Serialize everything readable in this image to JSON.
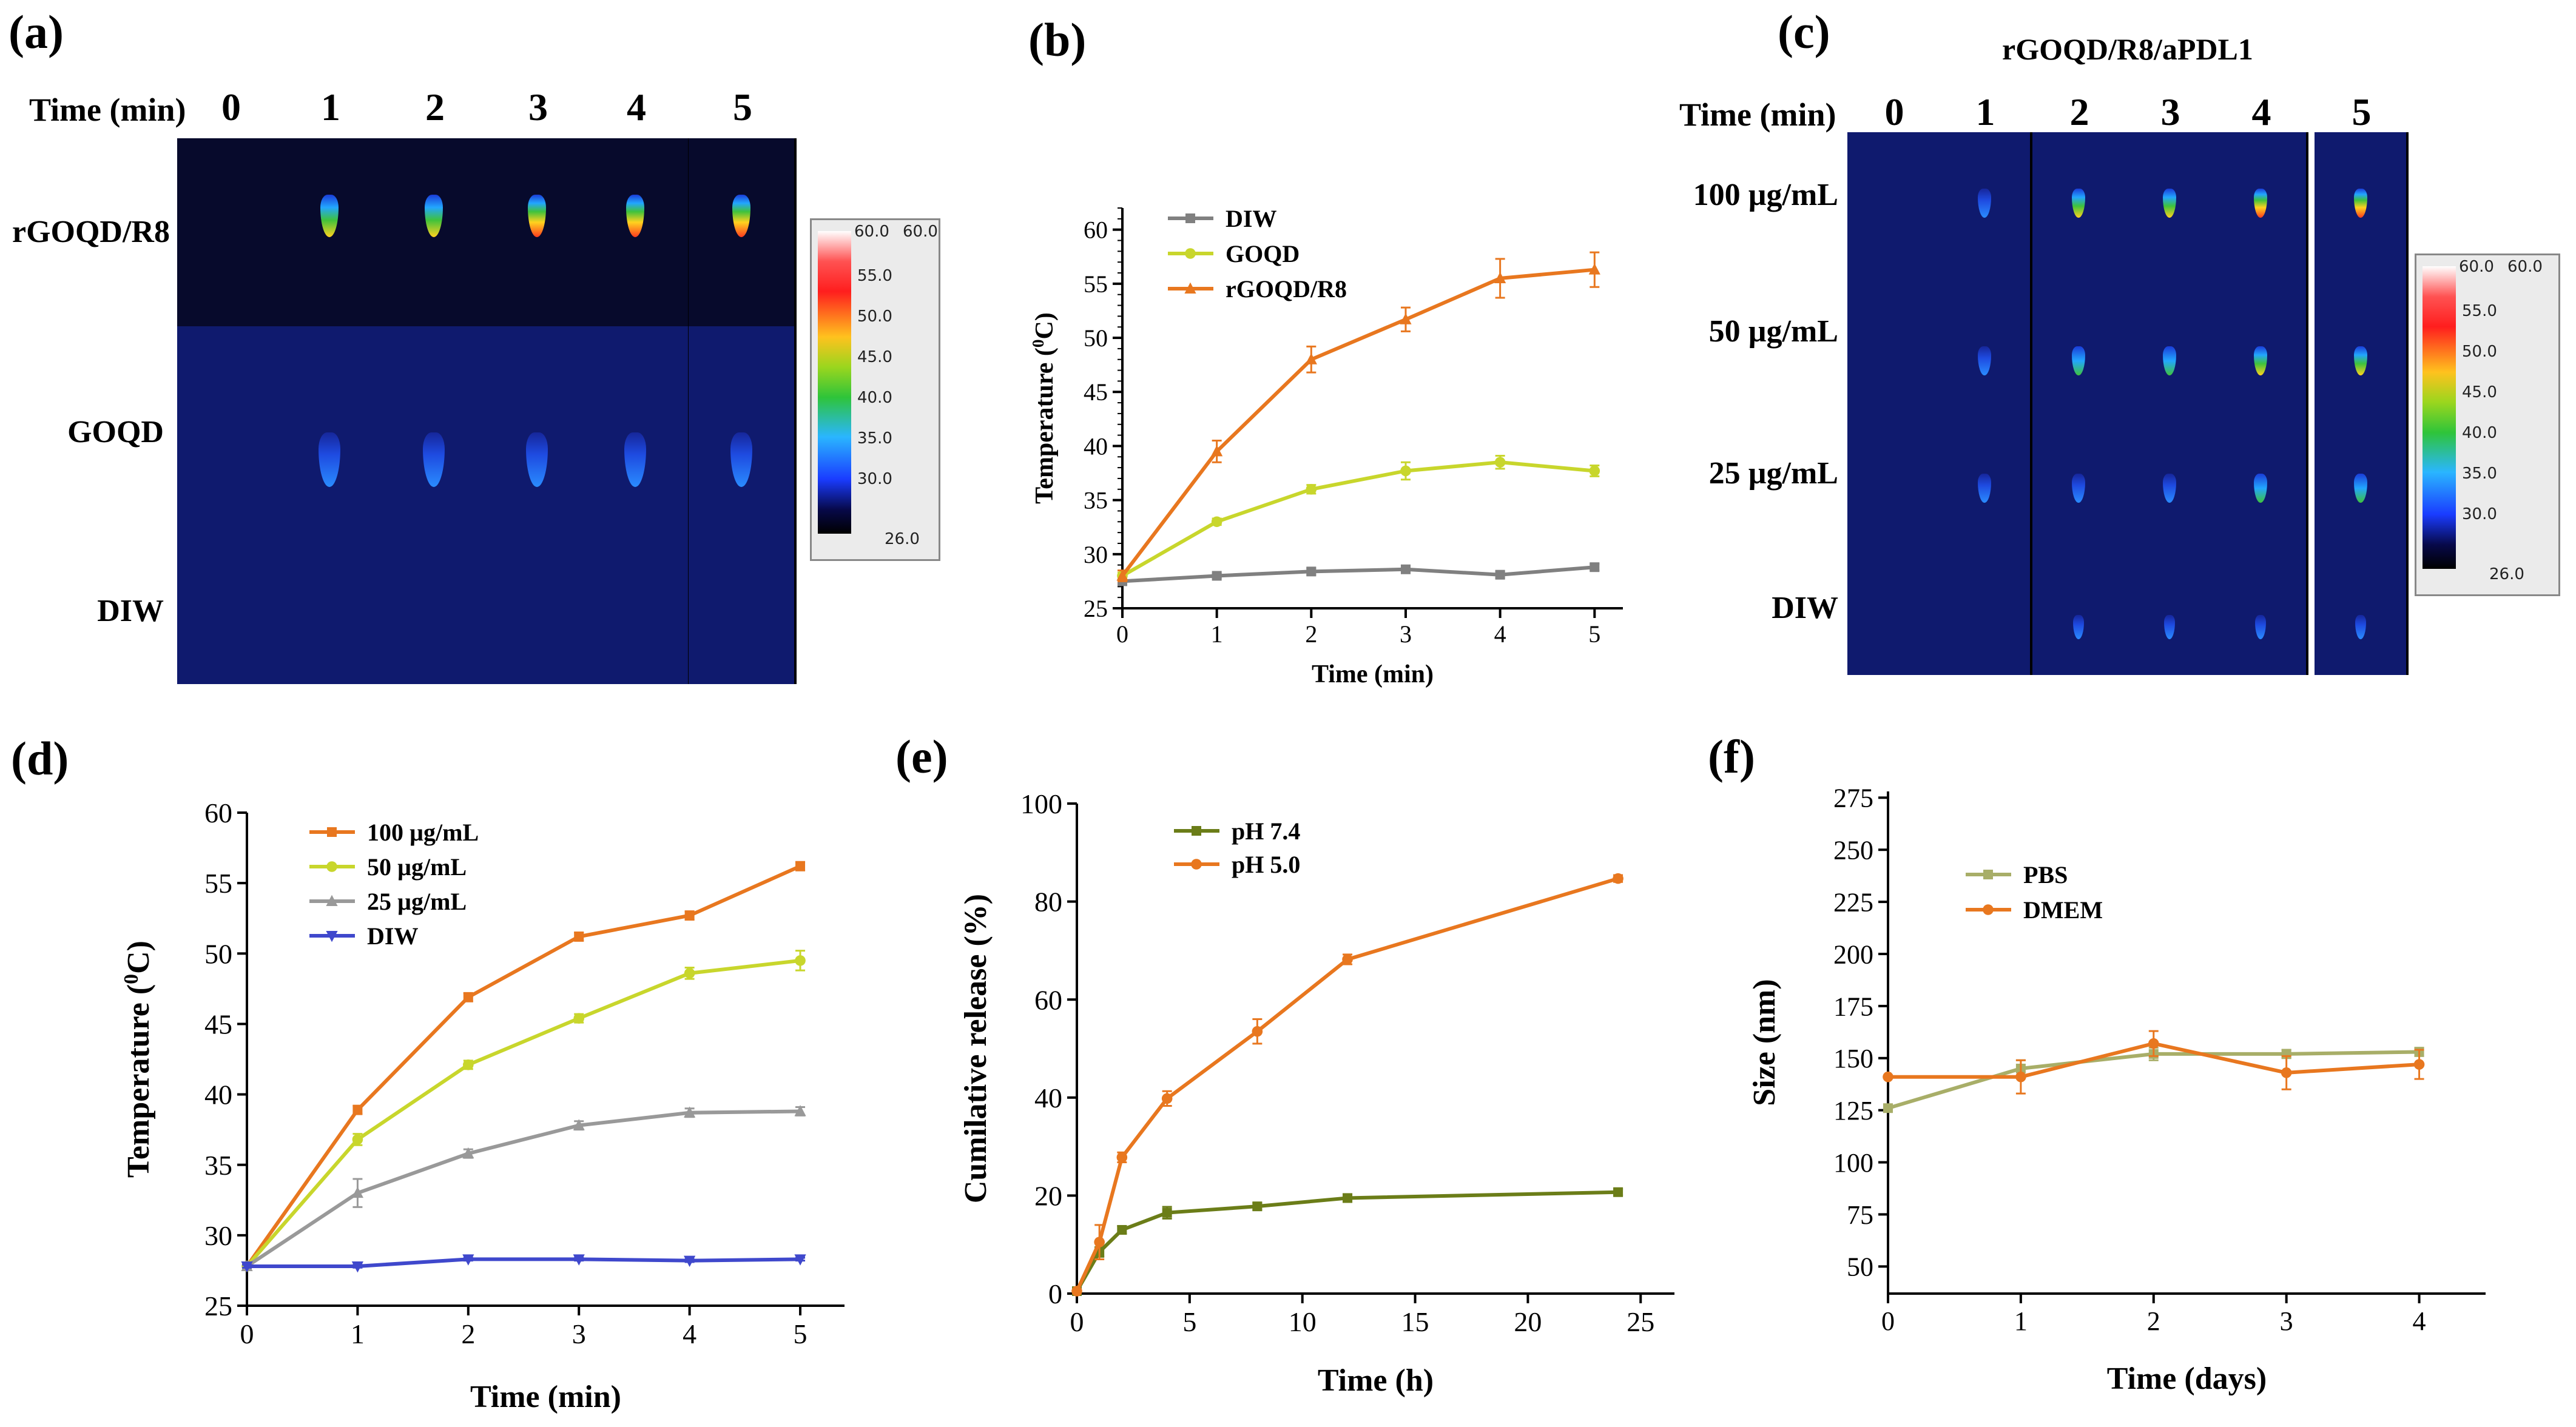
{
  "panels": {
    "a": {
      "letter": "(a)",
      "time_header": "Time (min)",
      "times": [
        "0",
        "1",
        "2",
        "3",
        "4",
        "5"
      ],
      "rows": [
        "rGOQD/R8",
        "GOQD",
        "DIW"
      ],
      "colorbar": {
        "max_label_a": "60.0",
        "max_label_b": "60.0",
        "ticks": [
          "55.0",
          "50.0",
          "45.0",
          "40.0",
          "35.0",
          "30.0"
        ],
        "min_label": "26.0"
      }
    },
    "c": {
      "letter": "(c)",
      "title": "rGOQD/R8/aPDL1",
      "time_header": "Time (min)",
      "times": [
        "0",
        "1",
        "2",
        "3",
        "4",
        "5"
      ],
      "rows": [
        "100 µg/mL",
        "50 µg/mL",
        "25 µg/mL",
        "DIW"
      ],
      "colorbar": {
        "max_label_a": "60.0",
        "max_label_b": "60.0",
        "ticks": [
          "55.0",
          "50.0",
          "45.0",
          "40.0",
          "35.0",
          "30.0"
        ],
        "min_label": "26.0"
      }
    }
  },
  "chart_data": [
    {
      "id": "b",
      "letter": "(b)",
      "type": "line",
      "xlabel": "Time (min)",
      "ylabel": "Temperature (°C)",
      "ylabel_main": "Temperature (",
      "ylabel_sup": "0",
      "ylabel_end": "C)",
      "xlim": [
        0,
        5.3
      ],
      "ylim": [
        25,
        62
      ],
      "xticks": [
        0,
        1,
        2,
        3,
        4,
        5
      ],
      "yticks": [
        25,
        30,
        35,
        40,
        45,
        50,
        55,
        60
      ],
      "x": [
        0,
        1,
        2,
        3,
        4,
        5
      ],
      "series": [
        {
          "name": "DIW",
          "color": "#808080",
          "marker": "square",
          "values": [
            27.5,
            28.0,
            28.4,
            28.6,
            28.1,
            28.8
          ],
          "err": [
            0.2,
            0.2,
            0.3,
            0.3,
            0.3,
            0.3
          ]
        },
        {
          "name": "GOQD",
          "color": "#c8d62c",
          "marker": "circle",
          "values": [
            28.0,
            33.0,
            36.0,
            37.7,
            38.5,
            37.7
          ],
          "err": [
            0.3,
            0.3,
            0.4,
            0.8,
            0.6,
            0.5
          ]
        },
        {
          "name": "rGOQD/R8",
          "color": "#e8771f",
          "marker": "triangle",
          "values": [
            28.0,
            39.5,
            48.0,
            51.7,
            55.5,
            56.3
          ],
          "err": [
            0.5,
            1.0,
            1.2,
            1.1,
            1.8,
            1.6
          ]
        }
      ]
    },
    {
      "id": "d",
      "letter": "(d)",
      "type": "line",
      "xlabel": "Time (min)",
      "ylabel": "Temperature (°C)",
      "ylabel_main": "Temperature (",
      "ylabel_sup": "0",
      "ylabel_end": "C)",
      "xlim": [
        0,
        5.4
      ],
      "ylim": [
        25,
        60
      ],
      "xticks": [
        0,
        1,
        2,
        3,
        4,
        5
      ],
      "yticks": [
        25,
        30,
        35,
        40,
        45,
        50,
        55,
        60
      ],
      "x": [
        0,
        1,
        2,
        3,
        4,
        5
      ],
      "series": [
        {
          "name": "100 µg/mL",
          "color": "#e8771f",
          "marker": "square",
          "values": [
            27.8,
            38.9,
            46.9,
            51.2,
            52.7,
            56.2
          ],
          "err": [
            0.2,
            0.3,
            0.3,
            0.3,
            0.3,
            0.3
          ]
        },
        {
          "name": "50 µg/mL",
          "color": "#c8d62c",
          "marker": "circle",
          "values": [
            27.8,
            36.8,
            42.1,
            45.4,
            48.6,
            49.5
          ],
          "err": [
            0.2,
            0.4,
            0.3,
            0.3,
            0.4,
            0.7
          ]
        },
        {
          "name": "25 µg/mL",
          "color": "#999999",
          "marker": "triangle",
          "values": [
            27.8,
            33.0,
            35.8,
            37.8,
            38.7,
            38.8
          ],
          "err": [
            0.2,
            1.0,
            0.3,
            0.3,
            0.3,
            0.3
          ]
        },
        {
          "name": "DIW",
          "color": "#3f48cc",
          "marker": "invtriangle",
          "values": [
            27.8,
            27.8,
            28.3,
            28.3,
            28.2,
            28.3
          ],
          "err": [
            0.1,
            0.1,
            0.1,
            0.1,
            0.1,
            0.1
          ]
        }
      ]
    },
    {
      "id": "e",
      "letter": "(e)",
      "type": "line",
      "xlabel": "Time (h)",
      "ylabel": "Cumilative release (%)",
      "xlim": [
        0,
        26.5
      ],
      "ylim": [
        0,
        100
      ],
      "xticks": [
        0,
        5,
        10,
        15,
        20,
        25
      ],
      "yticks": [
        0,
        20,
        40,
        60,
        80,
        100
      ],
      "x": [
        0,
        1,
        2,
        4,
        8,
        12,
        24
      ],
      "series": [
        {
          "name": "pH 7.4",
          "color": "#6b7d18",
          "marker": "square",
          "values": [
            0.5,
            8.5,
            13.0,
            16.5,
            17.8,
            19.5,
            20.7
          ],
          "err": [
            0.3,
            1.0,
            0.8,
            1.2,
            0.7,
            0.8,
            0.6
          ]
        },
        {
          "name": "pH 5.0",
          "color": "#e8771f",
          "marker": "circle",
          "values": [
            0.5,
            10.5,
            27.8,
            39.8,
            53.5,
            68.2,
            84.7
          ],
          "err": [
            0.3,
            3.5,
            1.0,
            1.5,
            2.5,
            1.0,
            0.7
          ]
        }
      ]
    },
    {
      "id": "f",
      "letter": "(f)",
      "type": "line",
      "xlabel": "Time (days)",
      "ylabel": "Size (nm)",
      "xlim": [
        0,
        4.5
      ],
      "ylim": [
        37,
        278
      ],
      "xticks": [
        0,
        1,
        2,
        3,
        4
      ],
      "yticks": [
        50,
        75,
        100,
        125,
        150,
        175,
        200,
        225,
        250,
        275
      ],
      "x": [
        0,
        1,
        2,
        3,
        4
      ],
      "series": [
        {
          "name": "PBS",
          "color": "#a8ae68",
          "marker": "square",
          "values": [
            126,
            145,
            152,
            152,
            153
          ],
          "err": [
            0,
            4,
            3,
            2,
            2
          ]
        },
        {
          "name": "DMEM",
          "color": "#e8771f",
          "marker": "circle",
          "values": [
            141,
            141,
            157,
            143,
            147
          ],
          "err": [
            0,
            8,
            6,
            8,
            7
          ]
        }
      ]
    }
  ]
}
